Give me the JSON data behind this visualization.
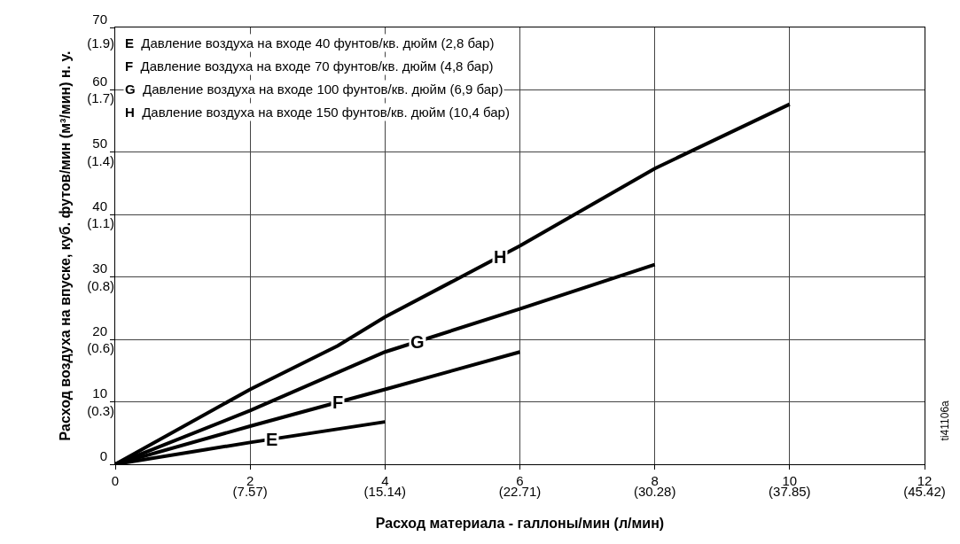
{
  "chart_data": {
    "type": "line",
    "xlabel": "Расход материала - галлоны/мин (л/мин)",
    "ylabel": "Расход воздуха на впуске, куб. футов/мин (м³/мин) н. у.",
    "series": [
      {
        "name": "E",
        "color": "#000000",
        "x": [
          0,
          2,
          4
        ],
        "values": [
          0,
          3.5,
          6.8
        ]
      },
      {
        "name": "F",
        "color": "#000000",
        "x": [
          0,
          2,
          4,
          6
        ],
        "values": [
          0,
          6.1,
          12,
          18
        ]
      },
      {
        "name": "G",
        "color": "#000000",
        "x": [
          0,
          2,
          4,
          6,
          8
        ],
        "values": [
          0,
          8.6,
          18,
          24.9,
          32
        ]
      },
      {
        "name": "H",
        "color": "#000000",
        "x": [
          0,
          2,
          3.3,
          4,
          6,
          8,
          10
        ],
        "values": [
          0,
          12,
          19,
          23.6,
          35,
          47.4,
          57.7
        ]
      }
    ],
    "xlim": [
      0,
      12
    ],
    "ylim": [
      0,
      70
    ],
    "xticks": [
      0,
      2,
      4,
      6,
      8,
      10,
      12
    ],
    "yticks": [
      0,
      10,
      20,
      30,
      40,
      50,
      60,
      70
    ],
    "x2lim": [
      0,
      45.42
    ],
    "x2ticks": [
      {
        "value": 7.57,
        "label": "(7.57)"
      },
      {
        "value": 15.14,
        "label": "(15.14)"
      },
      {
        "value": 22.71,
        "label": "(22.71)"
      },
      {
        "value": 30.28,
        "label": "(30.28)"
      },
      {
        "value": 37.85,
        "label": "(37.85)"
      },
      {
        "value": 45.42,
        "label": "(45.42)"
      }
    ],
    "y2lim": [
      0,
      1.982
    ],
    "y2ticks": [
      {
        "value": 0.283,
        "label": "(0.3)"
      },
      {
        "value": 0.566,
        "label": "(0.6)"
      },
      {
        "value": 0.85,
        "label": "(0.8)"
      },
      {
        "value": 1.133,
        "label": "(1.1)"
      },
      {
        "value": 1.416,
        "label": "(1.4)"
      },
      {
        "value": 1.699,
        "label": "(1.7)"
      },
      {
        "value": 1.95,
        "label": "(1.9)"
      }
    ],
    "grid": true,
    "legend": false,
    "marker": "none",
    "line_style": "solid",
    "annotations": [
      "E  Давление воздуха на входе 40 фунтов/кв. дюйм (2,8 бар)",
      "F  Давление воздуха на входе 70 фунтов/кв. дюйм (4,8 бар)",
      "G  Давление воздуха на входе 100 фунтов/кв. дюйм (6,9 бар)",
      "H  Давление воздуха на входе 150 фунтов/кв. дюйм (10,4 бар)",
      "ti41106a"
    ]
  }
}
